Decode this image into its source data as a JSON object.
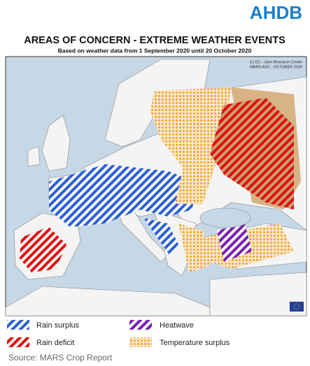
{
  "logo": "AHDB",
  "header": {
    "title": "AREAS OF CONCERN - EXTREME WEATHER EVENTS",
    "subtitle": "Based on weather data from 1 September 2020 until 20 October 2020"
  },
  "map": {
    "credits": [
      "(c) EC - Joint Research Centre",
      "MARS AOC - OCTOBER 2020"
    ]
  },
  "legend": [
    {
      "label": "Rain surplus"
    },
    {
      "label": "Heatwave"
    },
    {
      "label": "Rain deficit"
    },
    {
      "label": "Temperature surplus"
    }
  ],
  "source": "Source: MARS Crop Report"
}
